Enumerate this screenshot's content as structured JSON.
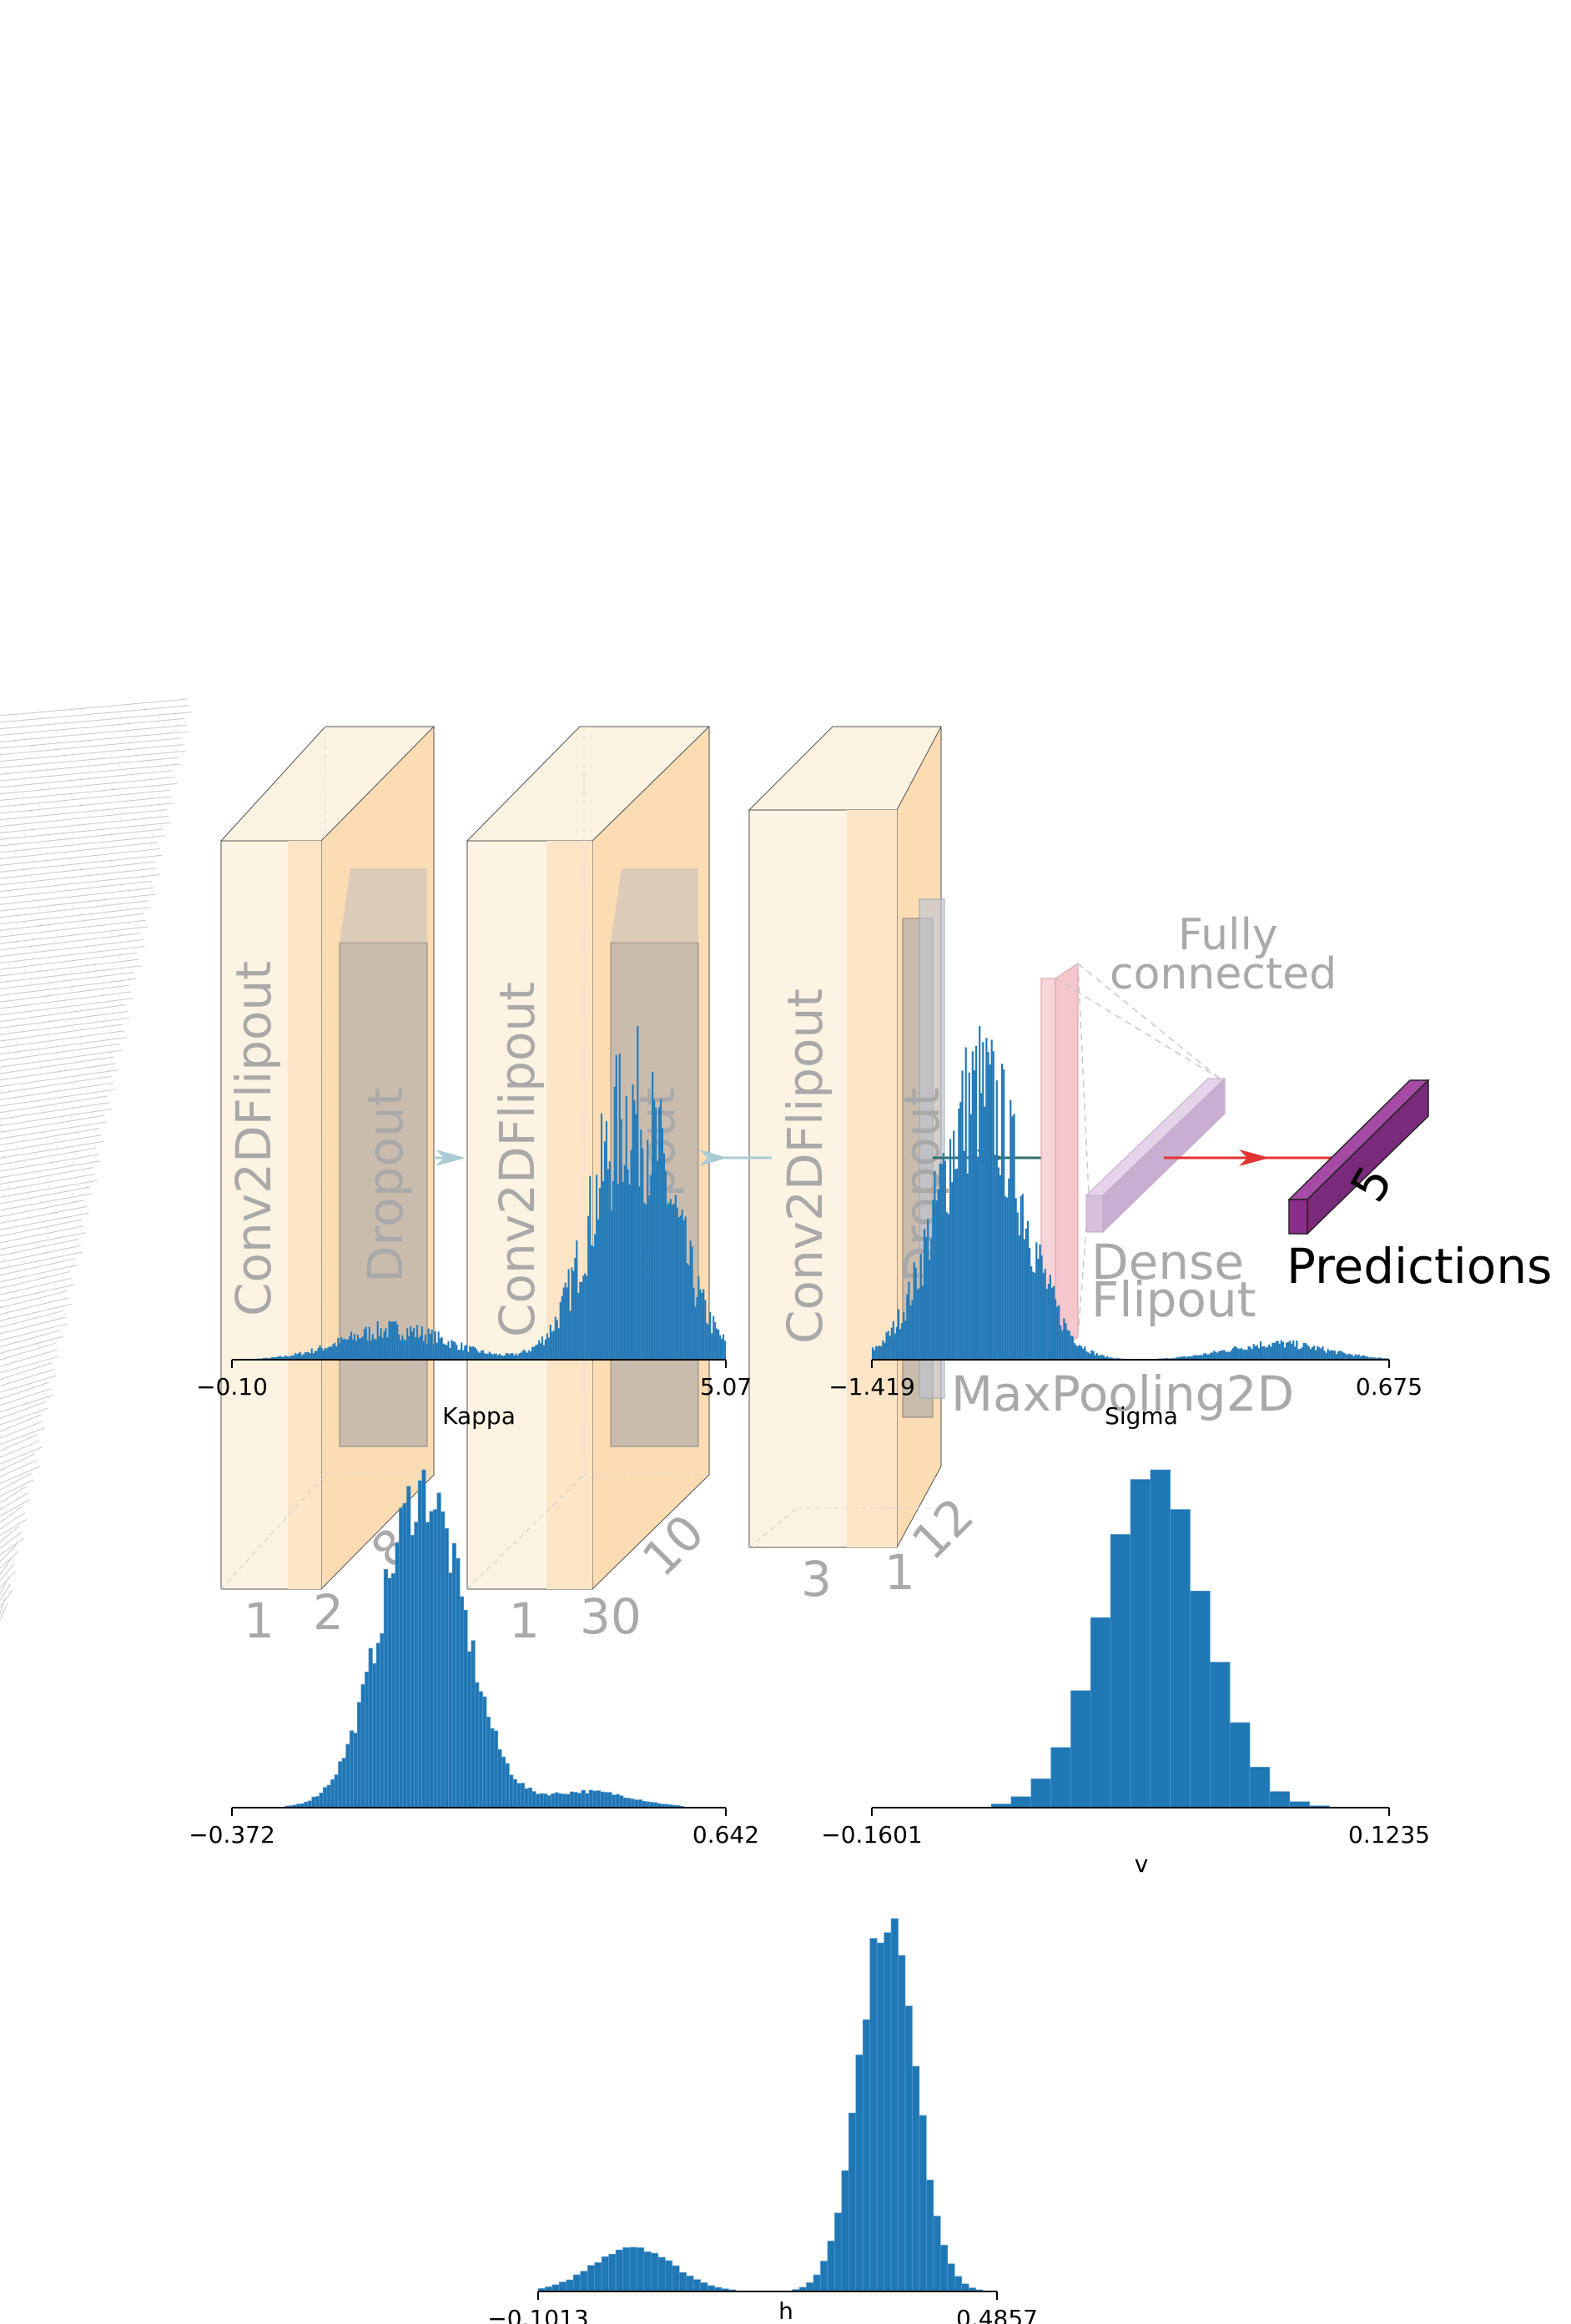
{
  "diagram": {
    "layers": [
      {
        "name": "Conv2DFlipout",
        "sub": "Dropout",
        "dims": [
          "1",
          "2",
          "8"
        ]
      },
      {
        "name": "Conv2DFlipout",
        "sub": "Dropout",
        "dims": [
          "1",
          "30",
          "10"
        ]
      },
      {
        "name": "Conv2DFlipout",
        "sub": "Dropout",
        "dims": [
          "3",
          "1",
          "12"
        ]
      }
    ],
    "maxpool_label": "MaxPooling2D",
    "fc_label_line1": "Fully",
    "fc_label_line2": "connected",
    "dense_label_line1": "Dense",
    "dense_label_line2": "Flipout",
    "output_dim": "5",
    "output_label": "Predictions",
    "colors": {
      "conv_front": "#fdf3e3",
      "conv_side": "#fbdcb3",
      "dropout": "#b8b1ab",
      "label_gray": "#a9a9a9",
      "maxpool": "#f4c7cc",
      "dense": "#d7bfdd",
      "output": "#8b2d8b",
      "arrow_teal": "#aacbd3",
      "arrow_dark": "#2f6f6b",
      "arrow_red": "#e33333"
    }
  },
  "chart_data": [
    {
      "type": "histogram",
      "xlabel": "Kappa",
      "xlim": [
        -0.1,
        5.07
      ],
      "xticks": [
        "−0.10",
        "5.07"
      ],
      "color": "#1f77b4",
      "modes": [
        {
          "center": 1.6,
          "width": 0.55,
          "height": 0.12
        },
        {
          "center": 4.1,
          "width": 0.42,
          "height": 1.0
        }
      ],
      "bins": 300,
      "noise": 0.35
    },
    {
      "type": "histogram",
      "xlabel": "Sigma",
      "xlim": [
        -1.419,
        0.675
      ],
      "xticks": [
        "−1.419",
        "0.675"
      ],
      "color": "#1f77b4",
      "modes": [
        {
          "center": -0.98,
          "width": 0.17,
          "height": 1.0
        },
        {
          "center": 0.22,
          "width": 0.2,
          "height": 0.06
        }
      ],
      "bins": 300,
      "noise": 0.3
    },
    {
      "type": "histogram",
      "xlabel": "",
      "xlim": [
        -0.372,
        0.642
      ],
      "xticks": [
        "−0.372",
        "0.642"
      ],
      "color": "#1f77b4",
      "modes": [
        {
          "center": 0.02,
          "width": 0.085,
          "height": 1.0
        },
        {
          "center": 0.36,
          "width": 0.09,
          "height": 0.05
        }
      ],
      "bins": 130,
      "noise": 0.12
    },
    {
      "type": "histogram",
      "xlabel": "v",
      "xlim": [
        -0.1601,
        0.1235
      ],
      "xticks": [
        "−0.1601",
        "0.1235"
      ],
      "color": "#1f77b4",
      "modes": [
        {
          "center": -0.005,
          "width": 0.028,
          "height": 1.0
        }
      ],
      "bins": 26,
      "noise": 0.04
    },
    {
      "type": "histogram",
      "xlabel": "h",
      "xlim": [
        -0.1013,
        0.4857
      ],
      "xticks": [
        "−0.1013",
        "0.4857"
      ],
      "color": "#1f77b4",
      "modes": [
        {
          "center": 0.345,
          "width": 0.036,
          "height": 1.0
        },
        {
          "center": 0.02,
          "width": 0.05,
          "height": 0.12
        }
      ],
      "bins": 65,
      "noise": 0.06
    }
  ]
}
